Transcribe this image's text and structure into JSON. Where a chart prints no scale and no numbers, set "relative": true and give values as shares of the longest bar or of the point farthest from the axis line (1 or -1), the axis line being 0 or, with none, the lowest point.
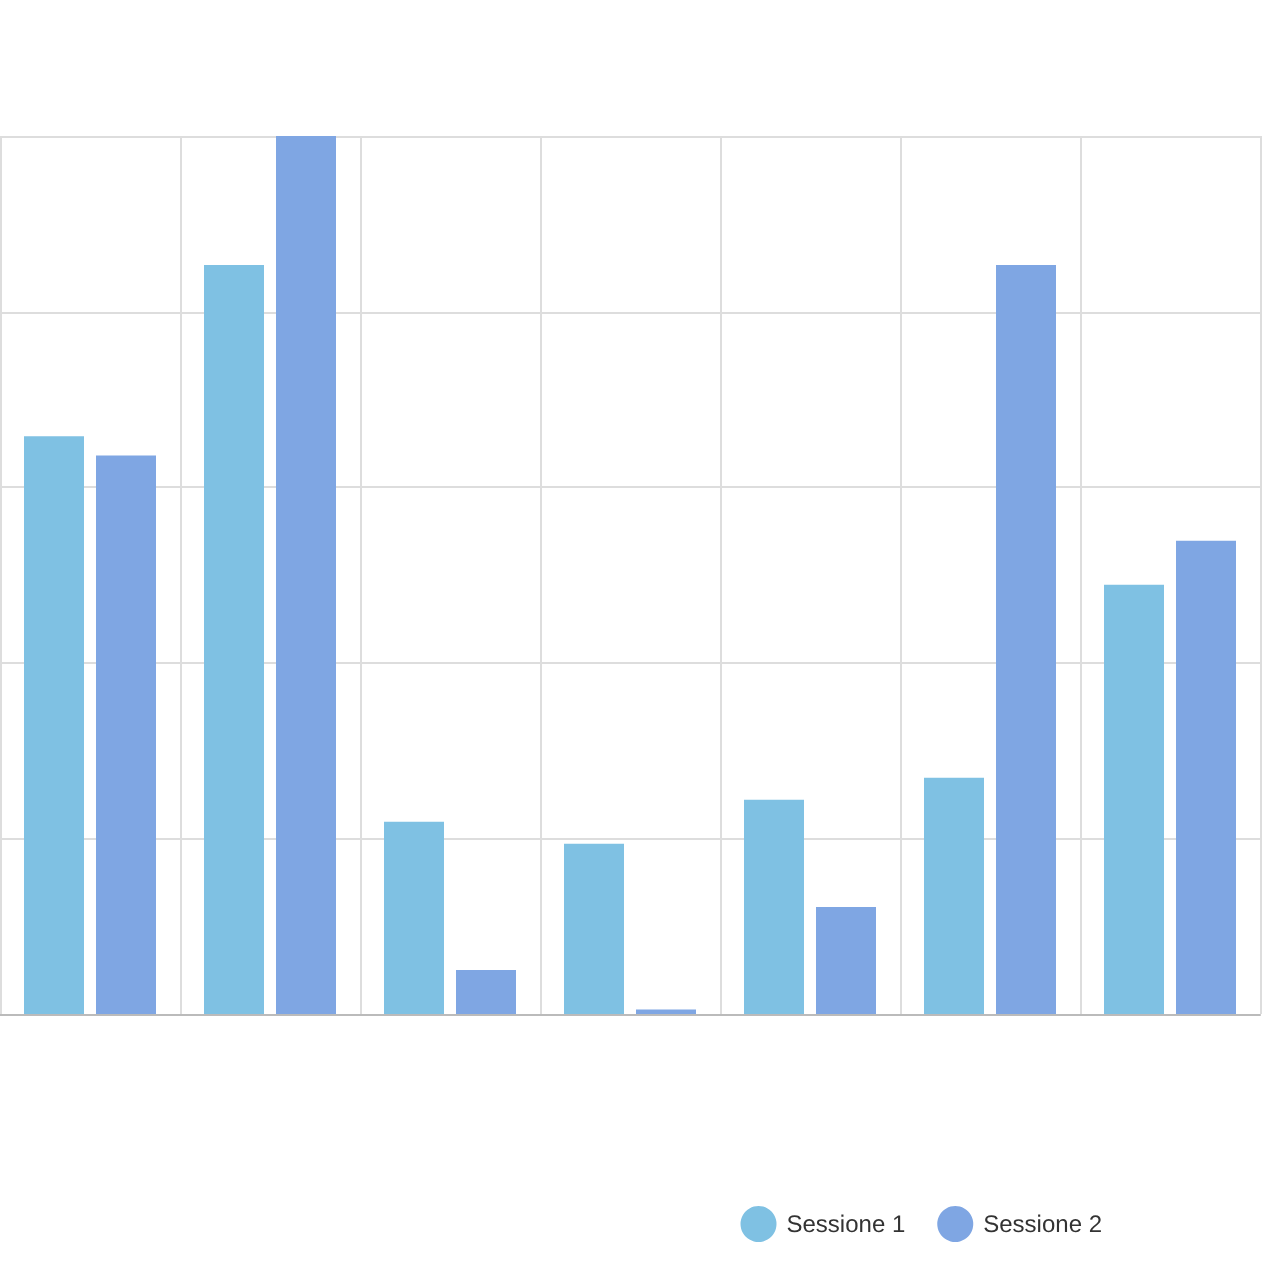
{
  "chart_data": {
    "type": "bar",
    "relative": true,
    "categories": [
      null,
      null,
      null,
      null,
      null,
      null,
      null
    ],
    "series": [
      {
        "name": "Sessione 1",
        "color": "#7fc1e3",
        "values": [
          0.658,
          0.853,
          0.219,
          0.194,
          0.244,
          0.269,
          0.489
        ]
      },
      {
        "name": "Sessione 2",
        "color": "#7fa6e3",
        "values": [
          0.636,
          1,
          0.05,
          0.005,
          0.122,
          0.853,
          0.539
        ]
      }
    ],
    "grid": true,
    "legend": "bottom right"
  }
}
